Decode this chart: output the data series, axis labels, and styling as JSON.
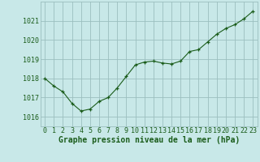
{
  "x": [
    0,
    1,
    2,
    3,
    4,
    5,
    6,
    7,
    8,
    9,
    10,
    11,
    12,
    13,
    14,
    15,
    16,
    17,
    18,
    19,
    20,
    21,
    22,
    23
  ],
  "y": [
    1018.0,
    1017.6,
    1017.3,
    1016.7,
    1016.3,
    1016.4,
    1016.8,
    1017.0,
    1017.5,
    1018.1,
    1018.7,
    1018.85,
    1018.9,
    1018.8,
    1018.75,
    1018.9,
    1019.4,
    1019.5,
    1019.9,
    1020.3,
    1020.6,
    1020.8,
    1021.1,
    1021.5
  ],
  "line_color": "#1a5c1a",
  "marker_color": "#1a5c1a",
  "bg_color": "#c8e8e8",
  "grid_color": "#9bbfbf",
  "xlabel": "Graphe pression niveau de la mer (hPa)",
  "xlabel_color": "#1a5c1a",
  "tick_color": "#1a5c1a",
  "ylim": [
    1015.5,
    1022.0
  ],
  "yticks": [
    1016,
    1017,
    1018,
    1019,
    1020,
    1021
  ],
  "xticks": [
    0,
    1,
    2,
    3,
    4,
    5,
    6,
    7,
    8,
    9,
    10,
    11,
    12,
    13,
    14,
    15,
    16,
    17,
    18,
    19,
    20,
    21,
    22,
    23
  ],
  "title_fontsize": 7.0,
  "tick_fontsize": 6.0
}
